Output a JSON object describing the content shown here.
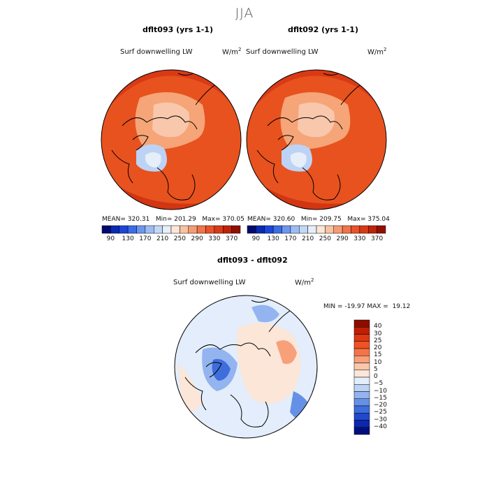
{
  "title": "JJA",
  "panels": [
    {
      "title": "dflt093 (yrs 1-1)",
      "variable": "Surf downwelling LW",
      "units_base": "W/m",
      "units_exp": "2",
      "stats": {
        "mean_label": "MEAN=",
        "mean": "320.31",
        "min_label": "Min=",
        "min": "201.29",
        "max_label": "Max=",
        "max": "370.05"
      }
    },
    {
      "title": "dflt092 (yrs 1-1)",
      "variable": "Surf downwelling LW",
      "units_base": "W/m",
      "units_exp": "2",
      "stats": {
        "mean_label": "MEAN=",
        "mean": "320.60",
        "min_label": "Min=",
        "min": "209.75",
        "max_label": "Max=",
        "max": "375.04"
      }
    },
    {
      "title": "dflt093 - dflt092",
      "variable": "Surf downwelling LW",
      "units_base": "W/m",
      "units_exp": "2",
      "stats": {
        "min_label": "MIN =",
        "min": "-19.97",
        "max_label": "MAX =",
        "max": "19.12"
      }
    }
  ],
  "colorbar_field": {
    "ticks": [
      "90",
      "130",
      "170",
      "210",
      "250",
      "290",
      "330",
      "370"
    ],
    "colors": [
      "#000a6e",
      "#0a2ab0",
      "#1b46d8",
      "#3c6de8",
      "#6d97ef",
      "#9bbcf3",
      "#c3d8f6",
      "#e6eefa",
      "#fbe6d8",
      "#f8c3a3",
      "#f59b74",
      "#f07549",
      "#e9522a",
      "#d93a16",
      "#bd2408",
      "#8f0f00"
    ]
  },
  "colorbar_diff": {
    "ticks": [
      "40",
      "30",
      "25",
      "20",
      "15",
      "10",
      "5",
      "0",
      "−5",
      "−10",
      "−15",
      "−20",
      "−25",
      "−30",
      "−40"
    ],
    "colors": [
      "#8c0c00",
      "#c01f04",
      "#dd3812",
      "#ee5226",
      "#f47448",
      "#f7a07a",
      "#f9c7ab",
      "#fbe6d8",
      "#e3edfb",
      "#bdd3f5",
      "#93b4ef",
      "#6690e6",
      "#3f6ddc",
      "#2149cc",
      "#0c28b0",
      "#000e7c"
    ]
  },
  "colors": {
    "field_base": "#e8521f",
    "field_warm": "#d93a16",
    "field_cool": "#f5a577",
    "field_cold": "#9bbcf3",
    "diff_base": "#e3edfb"
  }
}
